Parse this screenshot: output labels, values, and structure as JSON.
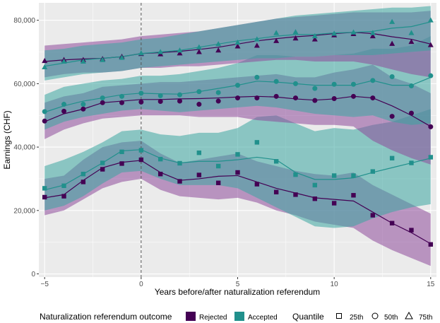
{
  "chart_data": {
    "type": "line",
    "title": "",
    "xlabel": "Years before/after naturalization referendum",
    "ylabel": "Earnings (CHF)",
    "xlim": [
      -5.3,
      15.3
    ],
    "ylim": [
      -1000,
      85500
    ],
    "x_ticks": [
      -5,
      0,
      5,
      10,
      15
    ],
    "x_tick_labels": [
      "−5",
      "0",
      "5",
      "10",
      "15"
    ],
    "y_ticks": [
      0,
      20000,
      40000,
      60000,
      80000
    ],
    "y_tick_labels": [
      "0",
      "20,000",
      "40,000",
      "60,000",
      "80,000"
    ],
    "grid": true,
    "reference_line_x": 0,
    "x": [
      -5,
      -4,
      -3,
      -2,
      -1,
      0,
      1,
      2,
      3,
      4,
      5,
      6,
      7,
      8,
      9,
      10,
      11,
      12,
      13,
      14,
      15
    ],
    "series": [
      {
        "group": "rejected",
        "quantile": "25th",
        "color": "#440154",
        "marker": "square",
        "values": [
          24200,
          24500,
          29000,
          33000,
          34800,
          36000,
          31500,
          29200,
          31200,
          28700,
          32000,
          28300,
          25800,
          25000,
          23700,
          22300,
          24800,
          18500,
          16000,
          13800,
          9300
        ],
        "line": [
          24000,
          25000,
          29500,
          33500,
          35200,
          35800,
          32000,
          29500,
          30000,
          30800,
          31000,
          29000,
          27000,
          25500,
          24000,
          23500,
          23000,
          19500,
          16000,
          13000,
          9500
        ],
        "ci_low": [
          18500,
          20000,
          23500,
          27000,
          29000,
          30000,
          26500,
          24500,
          24000,
          23500,
          24000,
          22500,
          20000,
          18500,
          16500,
          15500,
          14500,
          10500,
          7500,
          5000,
          2500
        ],
        "ci_high": [
          30000,
          31000,
          36000,
          40000,
          41500,
          42000,
          38000,
          35000,
          36000,
          37000,
          38000,
          35500,
          34000,
          32500,
          31500,
          31000,
          32000,
          28000,
          25000,
          22000,
          19000
        ]
      },
      {
        "group": "accepted",
        "quantile": "25th",
        "color": "#21908C",
        "marker": "square",
        "values": [
          27000,
          27800,
          31500,
          35000,
          38500,
          39000,
          36200,
          34900,
          38200,
          34000,
          37700,
          41500,
          35500,
          31300,
          28000,
          31000,
          31000,
          32300,
          36500,
          35000,
          36800
        ],
        "line": [
          26500,
          28000,
          31500,
          35000,
          38800,
          39200,
          36500,
          35000,
          35500,
          35500,
          36000,
          36800,
          36000,
          32000,
          29800,
          29800,
          30300,
          32000,
          33500,
          35000,
          36500
        ],
        "ci_low": [
          20000,
          21500,
          24500,
          28500,
          32000,
          32500,
          30000,
          28000,
          28000,
          28000,
          27000,
          24000,
          21000,
          18000,
          15000,
          14500,
          15000,
          17500,
          19500,
          21000,
          22000
        ],
        "ci_high": [
          34000,
          36000,
          38500,
          41500,
          45000,
          45500,
          44000,
          43500,
          44500,
          44500,
          46000,
          49500,
          50000,
          47500,
          45000,
          46000,
          45500,
          47000,
          48000,
          50000,
          52000
        ]
      },
      {
        "group": "rejected",
        "quantile": "50th",
        "color": "#440154",
        "marker": "circle",
        "values": [
          48200,
          51300,
          52000,
          54000,
          54000,
          54200,
          54400,
          54500,
          53500,
          54500,
          55500,
          55500,
          56000,
          55500,
          54700,
          55300,
          56000,
          55500,
          49700,
          50700,
          46400
        ],
        "line": [
          48000,
          50500,
          52000,
          54000,
          54500,
          55000,
          55000,
          55200,
          55300,
          55500,
          55800,
          56000,
          55800,
          55200,
          54800,
          55200,
          56000,
          55500,
          53000,
          50000,
          46500
        ],
        "ci_low": [
          42500,
          45500,
          47500,
          49000,
          49500,
          50000,
          50000,
          50000,
          49500,
          49500,
          49500,
          48500,
          48000,
          47500,
          47000,
          47000,
          46500,
          42000,
          39000,
          36500,
          34500
        ],
        "ci_high": [
          54000,
          56000,
          57000,
          59000,
          59500,
          60000,
          60500,
          60500,
          61000,
          61500,
          62000,
          62500,
          63000,
          62000,
          62000,
          63500,
          64500,
          66000,
          62000,
          60000,
          57000
        ]
      },
      {
        "group": "accepted",
        "quantile": "50th",
        "color": "#21908C",
        "marker": "circle",
        "values": [
          51200,
          53500,
          53500,
          55500,
          56000,
          57000,
          56200,
          56500,
          57500,
          57200,
          59500,
          62000,
          60700,
          60000,
          58500,
          59800,
          59800,
          61000,
          62200,
          59300,
          62500
        ],
        "line": [
          51000,
          53000,
          54500,
          55500,
          56500,
          57000,
          56800,
          56700,
          57500,
          58500,
          59500,
          60800,
          60500,
          60000,
          59500,
          59500,
          59500,
          61000,
          59500,
          59500,
          62000
        ],
        "ci_low": [
          45500,
          48000,
          49500,
          50500,
          51500,
          52000,
          51500,
          51000,
          51500,
          52000,
          52500,
          53000,
          52500,
          51500,
          50500,
          50000,
          49500,
          50000,
          48000,
          47000,
          47500
        ],
        "ci_high": [
          56500,
          59000,
          60000,
          61000,
          61500,
          62500,
          62500,
          63000,
          64000,
          65000,
          66500,
          69000,
          69000,
          68500,
          68500,
          69000,
          69500,
          71000,
          71000,
          72000,
          75000
        ]
      },
      {
        "group": "rejected",
        "quantile": "75th",
        "color": "#440154",
        "marker": "triangle",
        "values": [
          67200,
          67500,
          67500,
          67800,
          68500,
          69400,
          69300,
          69600,
          70000,
          70500,
          71800,
          72000,
          73500,
          74300,
          74000,
          75300,
          75700,
          75000,
          72600,
          73200,
          72200
        ],
        "line": [
          67000,
          67500,
          67800,
          68000,
          68500,
          69500,
          69800,
          70200,
          70800,
          71500,
          72500,
          73500,
          74200,
          74800,
          75200,
          75800,
          76200,
          75800,
          74800,
          74000,
          72500
        ],
        "ci_low": [
          62000,
          63000,
          63500,
          63500,
          64000,
          65000,
          65000,
          65500,
          65500,
          66000,
          66500,
          67000,
          67500,
          67500,
          67000,
          67000,
          67000,
          66000,
          64500,
          63000,
          62000
        ],
        "ci_high": [
          72000,
          72500,
          73000,
          73500,
          74000,
          75000,
          75500,
          76000,
          76500,
          77500,
          78500,
          79500,
          80500,
          81000,
          81500,
          82000,
          82500,
          82500,
          82500,
          82500,
          83000
        ]
      },
      {
        "group": "accepted",
        "quantile": "75th",
        "color": "#21908C",
        "marker": "triangle",
        "values": [
          65200,
          67000,
          67000,
          67500,
          68200,
          69600,
          70000,
          70500,
          71500,
          72500,
          73000,
          74000,
          76000,
          76300,
          75000,
          75800,
          76200,
          76000,
          79500,
          76000,
          80000
        ],
        "line": [
          65500,
          66500,
          67500,
          68000,
          68500,
          69500,
          70000,
          70500,
          71500,
          72500,
          73500,
          74200,
          75000,
          75500,
          75500,
          76000,
          76200,
          76500,
          77500,
          78000,
          79500
        ],
        "ci_low": [
          61000,
          62000,
          63000,
          63500,
          64000,
          65000,
          65500,
          66000,
          66500,
          67000,
          67500,
          68000,
          68000,
          68500,
          68500,
          69000,
          69000,
          69000,
          69500,
          70000,
          70500
        ],
        "ci_high": [
          70500,
          71000,
          72000,
          72500,
          73000,
          74000,
          74500,
          75500,
          76500,
          77500,
          78500,
          79500,
          80500,
          81500,
          82000,
          82500,
          83000,
          83500,
          84000,
          84000,
          84500
        ]
      }
    ],
    "legend": {
      "placement": "bottom",
      "outcome_title": "Naturalization referendum outcome",
      "outcome_items": [
        {
          "label": "Rejected",
          "color": "#440154"
        },
        {
          "label": "Accepted",
          "color": "#21908C"
        }
      ],
      "quantile_title": "Quantile",
      "quantile_items": [
        {
          "label": "25th",
          "marker": "square"
        },
        {
          "label": "50th",
          "marker": "circle"
        },
        {
          "label": "75th",
          "marker": "triangle"
        }
      ]
    },
    "colors": {
      "panel": "#EBEBEB",
      "grid": "#FFFFFF",
      "rejected_fill": "#8E4A9B",
      "accepted_fill": "#3AA5A0"
    }
  }
}
